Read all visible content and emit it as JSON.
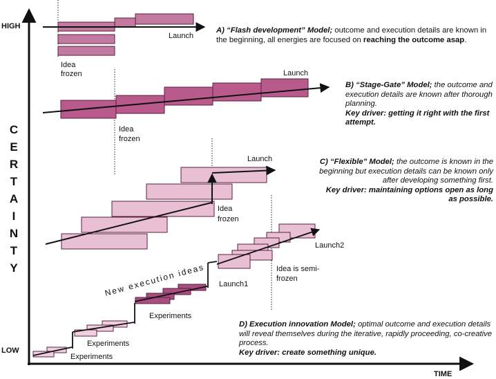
{
  "axes": {
    "y_label_letters": [
      "C",
      "E",
      "R",
      "T",
      "A",
      "I",
      "N",
      "T",
      "Y"
    ],
    "high": "HIGH",
    "low": "LOW",
    "time": "TIME"
  },
  "model_a": {
    "launch": "Launch",
    "idea_line1": "Idea",
    "idea_line2": "frozen",
    "title": "A) “Flash development” Model;",
    "text1": " outcome and execution details are known in the beginning, all energies are focused on ",
    "bold_end": "reaching the outcome asap",
    "end": "."
  },
  "model_b": {
    "launch": "Launch",
    "idea_line1": "Idea",
    "idea_line2": "frozen",
    "title": "B) “Stage-Gate” Model;",
    "text1": " the outcome and execution details are known after thorough planning.",
    "driver_label": "Key driver",
    "driver_text": ": getting it right with the first attempt."
  },
  "model_c": {
    "launch": "Launch",
    "idea_line1": "Idea",
    "idea_line2": "frozen",
    "title": "C) “Flexible” Model;",
    "text1": " the outcome is known in the beginning but execution details can be known only after developing something first.",
    "driver": "Key driver: maintaining options open as long as possible."
  },
  "model_d": {
    "experiments1": "Experiments",
    "experiments2": "Experiments",
    "experiments3": "Experiments",
    "launch1": "Launch1",
    "launch2": "Launch2",
    "semi_line1": "Idea is semi-",
    "semi_line2": "frozen",
    "new_ideas": "New execution ideas",
    "title": "D) Execution innovation Model;",
    "text1": " optimal outcome and execution details will reveal themselves during the iterative, rapidly proceeding, co-creative process.",
    "driver": "Key driver: create something unique."
  },
  "colors": {
    "dark": "#a84d80",
    "medium": "#c37aa0",
    "light": "#e9bfd3",
    "border": "#5a1f40"
  }
}
